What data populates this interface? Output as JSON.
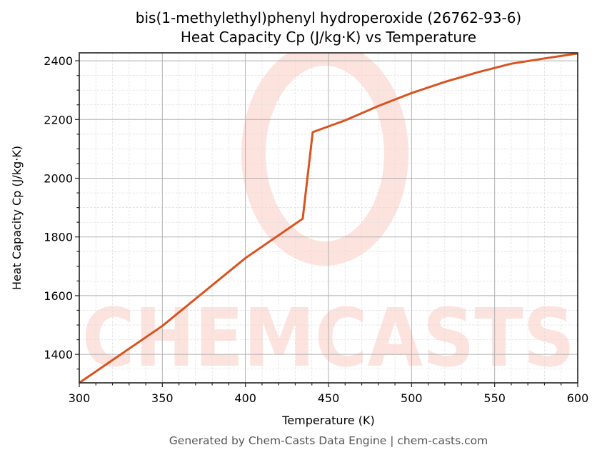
{
  "title_line1": "bis(1-methylethyl)phenyl hydroperoxide (26762-93-6)",
  "title_line2": "Heat Capacity Cp (J/kg·K) vs Temperature",
  "xlabel": "Temperature (K)",
  "ylabel": "Heat Capacity Cp (J/kg·K)",
  "footer": "Generated by Chem-Casts Data Engine | chem-casts.com",
  "watermark": "CHEMCASTS",
  "colors": {
    "line": "#d9531e",
    "watermark": "#fde3de",
    "grid_major": "#b0b0b0",
    "grid_minor": "#dddddd"
  },
  "chart_data": {
    "type": "line",
    "title": "bis(1-methylethyl)phenyl hydroperoxide (26762-93-6) Heat Capacity Cp (J/kg·K) vs Temperature",
    "xlabel": "Temperature (K)",
    "ylabel": "Heat Capacity Cp (J/kg·K)",
    "xlim": [
      300,
      600
    ],
    "ylim": [
      1303,
      2427
    ],
    "x_ticks": [
      300,
      350,
      400,
      450,
      500,
      550,
      600
    ],
    "y_ticks": [
      1400,
      1600,
      1800,
      2000,
      2200,
      2400
    ],
    "grid": true,
    "legend": null,
    "series": [
      {
        "name": "Cp",
        "x": [
          300,
          350,
          400,
          434.5,
          440.5,
          460,
          480,
          500,
          520,
          540,
          560,
          580,
          600
        ],
        "values": [
          1303,
          1497,
          1728,
          1862,
          2157,
          2197,
          2246,
          2290,
          2328,
          2361,
          2390,
          2408,
          2425
        ]
      }
    ]
  }
}
